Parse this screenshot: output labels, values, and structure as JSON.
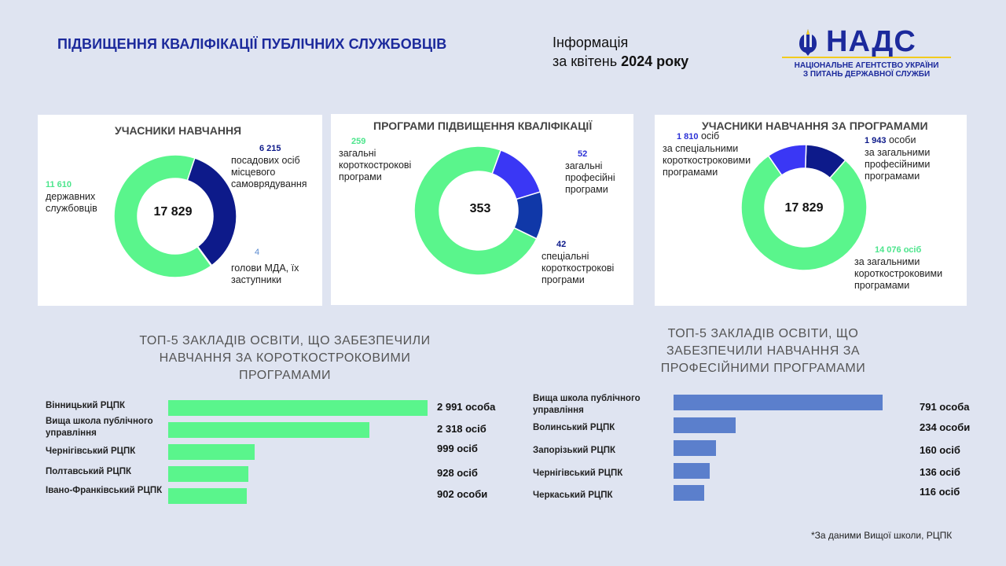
{
  "header": {
    "title": "ПІДВИЩЕННЯ КВАЛІФІКАЦІЇ ПУБЛІЧНИХ СЛУЖБОВЦІВ",
    "info_line1": "Інформація",
    "info_line2_prefix": "за квітень",
    "info_year": "2024 року"
  },
  "logo": {
    "name": "НАДС",
    "subtitle_line1": "НАЦІОНАЛЬНЕ АГЕНТСТВО УКРАЇНИ",
    "subtitle_line2": "З ПИТАНЬ ДЕРЖАВНОЇ СЛУЖБИ",
    "emblem_icon": "trident-icon"
  },
  "colors": {
    "green": "#5af58c",
    "navy": "#0d1a8a",
    "violet": "#3a37f5",
    "deep_blue": "#1038a8",
    "steel_blue": "#5b7fcc",
    "title_blue": "#1c2a9c"
  },
  "chart_data": [
    {
      "type": "pie",
      "title": "УЧАСНИКИ НАВЧАННЯ",
      "total": "17 829",
      "slices": [
        {
          "value": 11610,
          "value_label": "11 610",
          "label": "державних службовців",
          "color": "#5af58c"
        },
        {
          "value": 6215,
          "value_label": "6 215",
          "label": "посадових осіб місцевого самоврядування",
          "color": "#0d1a8a"
        },
        {
          "value": 4,
          "value_label": "4",
          "label": "голови МДА, їх заступники",
          "color": "#5a8ad0"
        }
      ]
    },
    {
      "type": "pie",
      "title": "ПРОГРАМИ ПІДВИЩЕННЯ КВАЛІФІКАЦІЇ",
      "total": "353",
      "slices": [
        {
          "value": 259,
          "value_label": "259",
          "label": "загальні короткострокові програми",
          "color": "#5af58c"
        },
        {
          "value": 52,
          "value_label": "52",
          "label": "загальні професійні програми",
          "color": "#3a37f5"
        },
        {
          "value": 42,
          "value_label": "42",
          "label": "спеціальні короткострокові програми",
          "color": "#1038a8"
        }
      ]
    },
    {
      "type": "pie",
      "title": "УЧАСНИКИ НАВЧАННЯ ЗА ПРОГРАМАМИ",
      "total": "17 829",
      "slices": [
        {
          "value": 14076,
          "value_label": "14  076 осіб",
          "label": "за загальними короткостроковими програмами",
          "color": "#5af58c"
        },
        {
          "value": 1810,
          "value_label": "1 810",
          "unit": "осіб",
          "label": "за спеціальними короткостроковими програмами",
          "color": "#3a37f5"
        },
        {
          "value": 1943,
          "value_label": "1 943",
          "unit": "особи",
          "label": "за загальними професійними програмами",
          "color": "#0d1a8a"
        }
      ]
    },
    {
      "type": "bar",
      "orientation": "horizontal",
      "title": "ТОП-5 ЗАКЛАДІВ ОСВІТИ, ЩО ЗАБЕЗПЕЧИЛИ НАВЧАННЯ ЗА КОРОТКОСТРОКОВИМИ ПРОГРАМАМИ",
      "color": "#5af58c",
      "categories": [
        "Вінницький РЦПК",
        "Вища школа публічного управління",
        "Чернігівський РЦПК",
        "Полтавський РЦПК",
        "Івано-Франківський РЦПК"
      ],
      "values": [
        2991,
        2318,
        999,
        928,
        902
      ],
      "value_labels": [
        "2 991 особа",
        "2 318  осіб",
        "999 осіб",
        "928 осіб",
        "902 особи"
      ]
    },
    {
      "type": "bar",
      "orientation": "horizontal",
      "title": "ТОП-5 ЗАКЛАДІВ ОСВІТИ, ЩО ЗАБЕЗПЕЧИЛИ НАВЧАННЯ ЗА ПРОФЕСІЙНИМИ ПРОГРАМАМИ",
      "color": "#5b7fcc",
      "categories": [
        "Вища школа публічного управління",
        "Волинський РЦПК",
        "Запорізький РЦПК",
        "Чернігівський РЦПК",
        "Черкаський РЦПК"
      ],
      "values": [
        791,
        234,
        160,
        136,
        116
      ],
      "value_labels": [
        "791 особа",
        "234 особи",
        "160 осіб",
        "136 осіб",
        "116 осіб"
      ]
    }
  ],
  "footnote": "*За даними Вищої школи, РЦПК"
}
